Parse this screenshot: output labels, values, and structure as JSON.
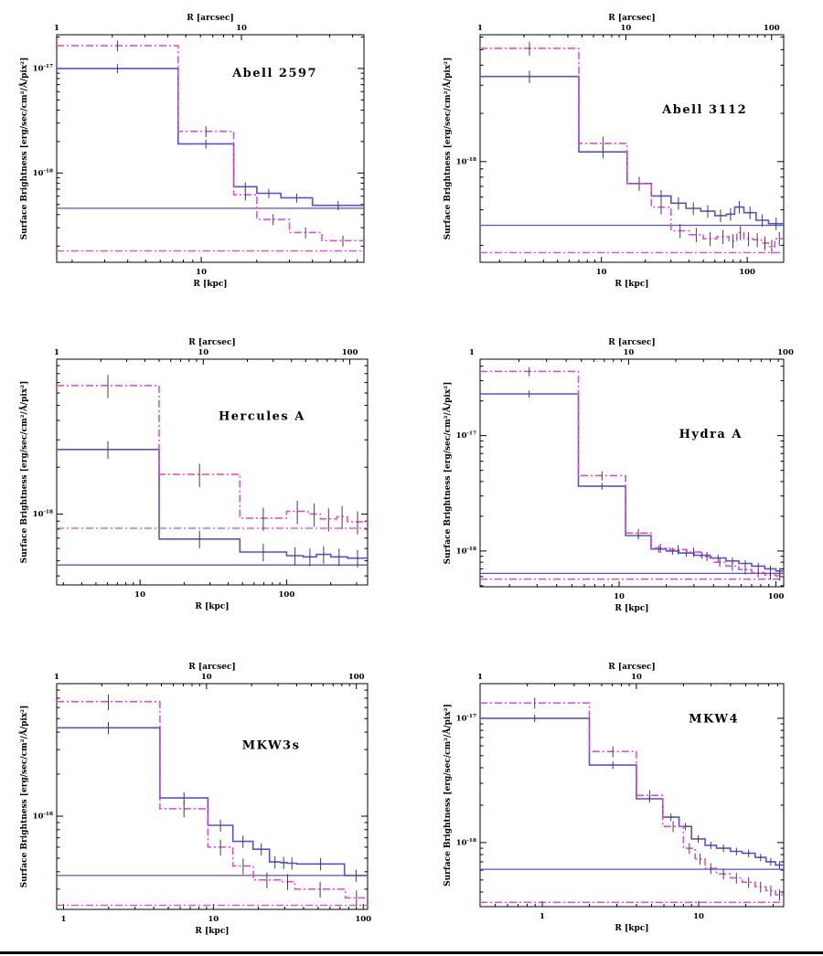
{
  "figure": {
    "colors": {
      "blue_profile": "#5a4ee0",
      "magenta_profile": "#ee3fd0",
      "error_bar": "#404040",
      "axis": "#000000",
      "bottom_rule": "#000000"
    }
  },
  "chart_data": [
    {
      "id": "abell-2597",
      "type": "line",
      "title": "Abell 2597",
      "xlabel_top": "R [arcsec]",
      "xlabel_bottom": "R [kpc]",
      "ylabel": "Surface Brightness [erg/sec/cm²/Å/pix²]",
      "xscale": "log",
      "yscale": "log",
      "xlim_kpc": [
        1.65,
        76
      ],
      "ylim": [
        1.4e-19,
        2.1e-17
      ],
      "kpc_per_arcsec": 1.65,
      "xticks_bottom": [
        {
          "label": "10",
          "value": 10
        }
      ],
      "xticks_top": [
        {
          "label": "1",
          "value": 1
        },
        {
          "label": "10",
          "value": 10
        }
      ],
      "yticks": [
        {
          "label": "10⁻¹⁷",
          "exponent": -17
        },
        {
          "label": "10⁻¹⁸",
          "exponent": -18
        }
      ],
      "series": [
        {
          "name": "solid-blue-profile",
          "color": "blue",
          "line_style": "solid",
          "bin_edges_kpc": [
            1.65,
            7.5,
            15,
            20,
            27,
            40,
            76
          ],
          "values": [
            1e-17,
            1.9e-18,
            7.4e-19,
            6.4e-19,
            5.8e-19,
            4.9e-19
          ],
          "err_frac": 0.1
        },
        {
          "name": "dashdot-magenta-profile",
          "color": "magenta",
          "line_style": "dash-dot",
          "bin_edges_kpc": [
            1.65,
            7.5,
            15,
            20,
            30,
            45,
            76
          ],
          "values": [
            1.65e-17,
            2.5e-18,
            6.2e-19,
            3.6e-19,
            2.7e-19,
            2.25e-19
          ],
          "err_frac": 0.12
        }
      ],
      "background_levels": [
        {
          "color": "blue",
          "line_style": "solid",
          "value": 4.6e-19
        },
        {
          "color": "magenta",
          "line_style": "dash-dot",
          "value": 1.8e-19
        }
      ]
    },
    {
      "id": "abell-3112",
      "type": "line",
      "title": "Abell 3112",
      "xlabel_top": "R [arcsec]",
      "xlabel_bottom": "R [kpc]",
      "ylabel": "Surface Brightness [erg/sec/cm²/Å/pix²]",
      "xscale": "log",
      "yscale": "log",
      "xlim_kpc": [
        1.47,
        178
      ],
      "ylim": [
        2.35e-19,
        6.2e-18
      ],
      "kpc_per_arcsec": 1.47,
      "xticks_bottom": [
        {
          "label": "10",
          "value": 10
        },
        {
          "label": "100",
          "value": 100
        }
      ],
      "xticks_top": [
        {
          "label": "1",
          "value": 1
        },
        {
          "label": "10",
          "value": 10
        },
        {
          "label": "100",
          "value": 100
        }
      ],
      "yticks": [
        {
          "label": "10⁻¹⁸",
          "exponent": -18
        }
      ],
      "series": [
        {
          "name": "solid-blue-profile",
          "color": "blue",
          "line_style": "solid",
          "bin_edges_kpc": [
            1.47,
            7,
            15,
            22,
            30,
            38,
            48,
            60,
            72,
            82,
            95,
            115,
            140,
            178
          ],
          "values": [
            3.4e-18,
            1.15e-18,
            7.3e-19,
            6.1e-19,
            5.5e-19,
            5.1e-19,
            4.9e-19,
            4.6e-19,
            4.7e-19,
            5.2e-19,
            4.8e-19,
            4.3e-19,
            4.1e-19
          ],
          "err_frac": 0.09
        },
        {
          "name": "dashdot-magenta-profile",
          "color": "magenta",
          "line_style": "dash-dot",
          "bin_edges_kpc": [
            1.47,
            7,
            15,
            22,
            30,
            40,
            50,
            62,
            75,
            85,
            95,
            110,
            125,
            140,
            155,
            178
          ],
          "values": [
            5.1e-18,
            1.3e-18,
            7.3e-19,
            5.2e-19,
            3.7e-19,
            3.5e-19,
            3.3e-19,
            3.4e-19,
            3.2e-19,
            3.6e-19,
            3.3e-19,
            3.25e-19,
            3.1e-19,
            2.95e-19,
            3.3e-19
          ],
          "err_frac": 0.1
        }
      ],
      "background_levels": [
        {
          "color": "blue",
          "line_style": "solid",
          "value": 4e-19
        },
        {
          "color": "magenta",
          "line_style": "dash-dot",
          "value": 2.7e-19
        }
      ]
    },
    {
      "id": "hercules-a",
      "type": "line",
      "title": "Hercules A",
      "xlabel_top": "R [arcsec]",
      "xlabel_bottom": "R [kpc]",
      "ylabel": "Surface Brightness [erg/sec/cm²/Å/pix²]",
      "xscale": "log",
      "yscale": "log",
      "xlim_kpc": [
        2.7,
        357
      ],
      "ylim": [
        3.5e-19,
        9.9e-18
      ],
      "kpc_per_arcsec": 2.7,
      "xticks_bottom": [
        {
          "label": "10",
          "value": 10
        },
        {
          "label": "100",
          "value": 100
        }
      ],
      "xticks_top": [
        {
          "label": "1",
          "value": 1
        },
        {
          "label": "10",
          "value": 10
        },
        {
          "label": "100",
          "value": 100
        }
      ],
      "yticks": [
        {
          "label": "10⁻¹⁸",
          "exponent": -18
        }
      ],
      "series": [
        {
          "name": "solid-blue-profile",
          "color": "blue",
          "line_style": "solid",
          "bin_edges_kpc": [
            2.7,
            13.5,
            48,
            100,
            130,
            160,
            200,
            260,
            357
          ],
          "values": [
            2.6e-18,
            6.9e-19,
            5.7e-19,
            5.4e-19,
            5.3e-19,
            5.5e-19,
            5.3e-19,
            5.2e-19
          ],
          "err_frac": 0.13
        },
        {
          "name": "dashdot-magenta-profile",
          "color": "magenta",
          "line_style": "dash-dot",
          "bin_edges_kpc": [
            2.7,
            13.5,
            48,
            100,
            140,
            170,
            220,
            260,
            357
          ],
          "values": [
            6.7e-18,
            1.8e-18,
            9.4e-19,
            1.04e-18,
            1e-18,
            9.3e-19,
            9.6e-19,
            8.9e-19
          ],
          "err_frac": 0.17
        }
      ],
      "background_levels": [
        {
          "color": "blue",
          "line_style": "solid",
          "value": 4.7e-19
        },
        {
          "color": "magenta",
          "line_style": "dash-dot",
          "value": 8.1e-19
        }
      ]
    },
    {
      "id": "hydra-a",
      "type": "line",
      "title": "Hydra A",
      "xlabel_top": "R [arcsec]",
      "xlabel_bottom": "R [kpc]",
      "ylabel": "Surface Brightness [erg/sec/cm²/Å/pix²]",
      "xscale": "log",
      "yscale": "log",
      "xlim_kpc": [
        1.3,
        112
      ],
      "ylim": [
        4.9e-19,
        4.6e-17
      ],
      "kpc_per_arcsec": 1.15,
      "xticks_bottom": [
        {
          "label": "10",
          "value": 10
        },
        {
          "label": "100",
          "value": 100
        }
      ],
      "xticks_top": [
        {
          "label": "1",
          "value": 1
        },
        {
          "label": "10",
          "value": 10
        },
        {
          "label": "100",
          "value": 100
        }
      ],
      "yticks": [
        {
          "label": "10⁻¹⁷",
          "exponent": -17
        },
        {
          "label": "10⁻¹⁸",
          "exponent": -18
        }
      ],
      "series": [
        {
          "name": "solid-blue-profile",
          "color": "blue",
          "line_style": "solid",
          "bin_edges_kpc": [
            1.3,
            5.5,
            11,
            16,
            20,
            24,
            30,
            38,
            48,
            58,
            70,
            85,
            100,
            112
          ],
          "values": [
            2.3e-17,
            3.65e-18,
            1.36e-18,
            1.04e-18,
            1e-18,
            9.6e-19,
            9.2e-19,
            8.7e-19,
            8.2e-19,
            7.8e-19,
            7.4e-19,
            7e-19,
            6.7e-19
          ],
          "err_frac": 0.07
        },
        {
          "name": "dashdot-magenta-profile",
          "color": "magenta",
          "line_style": "dash-dot",
          "bin_edges_kpc": [
            1.3,
            5.5,
            11,
            16,
            21,
            27,
            33,
            40,
            48,
            58,
            70,
            85,
            100,
            112
          ],
          "values": [
            3.6e-17,
            4.5e-18,
            1.43e-18,
            1.06e-18,
            1.03e-18,
            9.8e-19,
            9e-19,
            8e-19,
            7.4e-19,
            6.9e-19,
            6.5e-19,
            6.2e-19,
            6.1e-19
          ],
          "err_frac": 0.09
        }
      ],
      "background_levels": [
        {
          "color": "blue",
          "line_style": "solid",
          "value": 6.4e-19
        },
        {
          "color": "magenta",
          "line_style": "dash-dot",
          "value": 5.7e-19
        }
      ]
    },
    {
      "id": "mkw3s",
      "type": "line",
      "title": "MKW3s",
      "xlabel_top": "R [arcsec]",
      "xlabel_bottom": "R [kpc]",
      "ylabel": "Surface Brightness [erg/sec/cm²/Å/pix²]",
      "xscale": "log",
      "yscale": "log",
      "xlim_kpc": [
        0.9,
        107
      ],
      "ylim": [
        2.15e-19,
        8.9e-18
      ],
      "kpc_per_arcsec": 0.9,
      "xticks_bottom": [
        {
          "label": "1",
          "value": 1
        },
        {
          "label": "10",
          "value": 10
        },
        {
          "label": "100",
          "value": 100
        }
      ],
      "xticks_top": [
        {
          "label": "1",
          "value": 1
        },
        {
          "label": "10",
          "value": 10
        },
        {
          "label": "100",
          "value": 100
        }
      ],
      "yticks": [
        {
          "label": "10⁻¹⁸",
          "exponent": -18
        }
      ],
      "series": [
        {
          "name": "solid-blue-profile",
          "color": "blue",
          "line_style": "solid",
          "bin_edges_kpc": [
            0.9,
            4.4,
            9.2,
            13.5,
            18.4,
            23.7,
            28,
            31,
            36,
            75,
            107
          ],
          "values": [
            4.3e-18,
            1.35e-18,
            8.6e-19,
            6.6e-19,
            5.8e-19,
            4.7e-19,
            4.65e-19,
            4.6e-19,
            4.55e-19,
            3.76e-19
          ],
          "err_frac": 0.1
        },
        {
          "name": "dashdot-magenta-profile",
          "color": "magenta",
          "line_style": "dash-dot",
          "bin_edges_kpc": [
            0.9,
            4.4,
            9.2,
            13.5,
            18.5,
            28,
            35,
            76,
            107
          ],
          "values": [
            6.6e-18,
            1.13e-18,
            6e-19,
            4.4e-19,
            3.5e-19,
            3.4e-19,
            3e-19,
            2.6e-19
          ],
          "err_frac": 0.13
        }
      ],
      "background_levels": [
        {
          "color": "blue",
          "line_style": "solid",
          "value": 3.76e-19
        },
        {
          "color": "magenta",
          "line_style": "dash-dot",
          "value": 2.3e-19
        }
      ]
    },
    {
      "id": "mkw4",
      "type": "line",
      "title": "MKW4",
      "xlabel_top": "R [arcsec]",
      "xlabel_bottom": "R [kpc]",
      "ylabel": "Surface Brightness [erg/sec/cm²/Å/pix²]",
      "xscale": "log",
      "yscale": "log",
      "xlim_kpc": [
        0.4,
        35
      ],
      "ylim": [
        3.05e-19,
        1.9e-17
      ],
      "kpc_per_arcsec": 0.4,
      "xticks_bottom": [
        {
          "label": "1",
          "value": 1
        },
        {
          "label": "10",
          "value": 10
        }
      ],
      "xticks_top": [
        {
          "label": "1",
          "value": 1
        },
        {
          "label": "10",
          "value": 10
        }
      ],
      "yticks": [
        {
          "label": "10⁻¹⁷",
          "exponent": -17
        },
        {
          "label": "10⁻¹⁸",
          "exponent": -18
        }
      ],
      "series": [
        {
          "name": "solid-blue-profile",
          "color": "blue",
          "line_style": "solid",
          "bin_edges_kpc": [
            0.4,
            2.0,
            4.0,
            5.9,
            7.5,
            9,
            11,
            13,
            16,
            19,
            23,
            27,
            31,
            35
          ],
          "values": [
            1e-17,
            4.2e-18,
            2.25e-18,
            1.6e-18,
            1.35e-18,
            1.07e-18,
            9.5e-19,
            9e-19,
            8.5e-19,
            8.2e-19,
            7.6e-19,
            7e-19,
            6.6e-19
          ],
          "err_frac": 0.07
        },
        {
          "name": "dashdot-magenta-profile",
          "color": "magenta",
          "line_style": "dash-dot",
          "bin_edges_kpc": [
            0.4,
            2.0,
            4.0,
            5.9,
            8,
            9.5,
            11,
            13,
            16,
            19,
            23,
            27,
            31,
            35
          ],
          "values": [
            1.33e-17,
            5.4e-18,
            2.4e-18,
            1.35e-18,
            9e-19,
            7.4e-19,
            6.2e-19,
            5.6e-19,
            5.2e-19,
            4.8e-19,
            4.4e-19,
            4.1e-19,
            3.8e-19
          ],
          "err_frac": 0.1
        }
      ],
      "background_levels": [
        {
          "color": "blue",
          "line_style": "solid",
          "value": 6.1e-19
        },
        {
          "color": "magenta",
          "line_style": "dash-dot",
          "value": 3.3e-19
        }
      ]
    }
  ]
}
